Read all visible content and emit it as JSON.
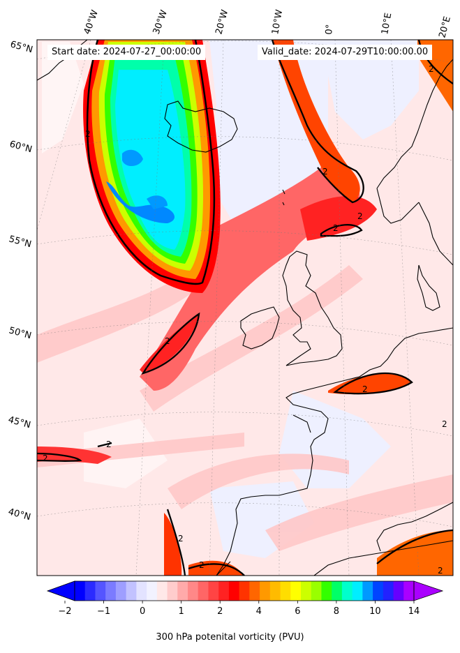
{
  "header": {
    "start_date": "Start date: 2024-07-27_00:00:00",
    "valid_date": "Valid_date: 2024-07-29T10:00:00.00"
  },
  "axes": {
    "lon_ticks": [
      "40°W",
      "30°W",
      "20°W",
      "10°W",
      "0°",
      "10°E",
      "20°E"
    ],
    "lat_ticks": [
      "65°N",
      "60°N",
      "55°N",
      "50°N",
      "45°N",
      "40°N"
    ]
  },
  "contour_value": "2",
  "colorbar": {
    "label": "300 hPa potenital vorticity (PVU)",
    "tick_labels": [
      "−2",
      "−1",
      "0",
      "1",
      "2",
      "4",
      "6",
      "8",
      "10",
      "14"
    ],
    "colors": [
      "#0000ff",
      "#2b2bff",
      "#5555ff",
      "#7b7bff",
      "#9e9eff",
      "#c2c2ff",
      "#e3e3ff",
      "#f2f2ff",
      "#ffe8e8",
      "#ffcccc",
      "#ffaaaa",
      "#ff8888",
      "#ff6666",
      "#ff4444",
      "#ff2222",
      "#ff0000",
      "#ff3300",
      "#ff6600",
      "#ff9900",
      "#ffbb00",
      "#ffdd00",
      "#ffff00",
      "#ccff00",
      "#99ff00",
      "#33ff00",
      "#00ff66",
      "#00ffcc",
      "#00eeff",
      "#0099ff",
      "#0044ff",
      "#2222ff",
      "#6600ff",
      "#aa00ff"
    ]
  }
}
